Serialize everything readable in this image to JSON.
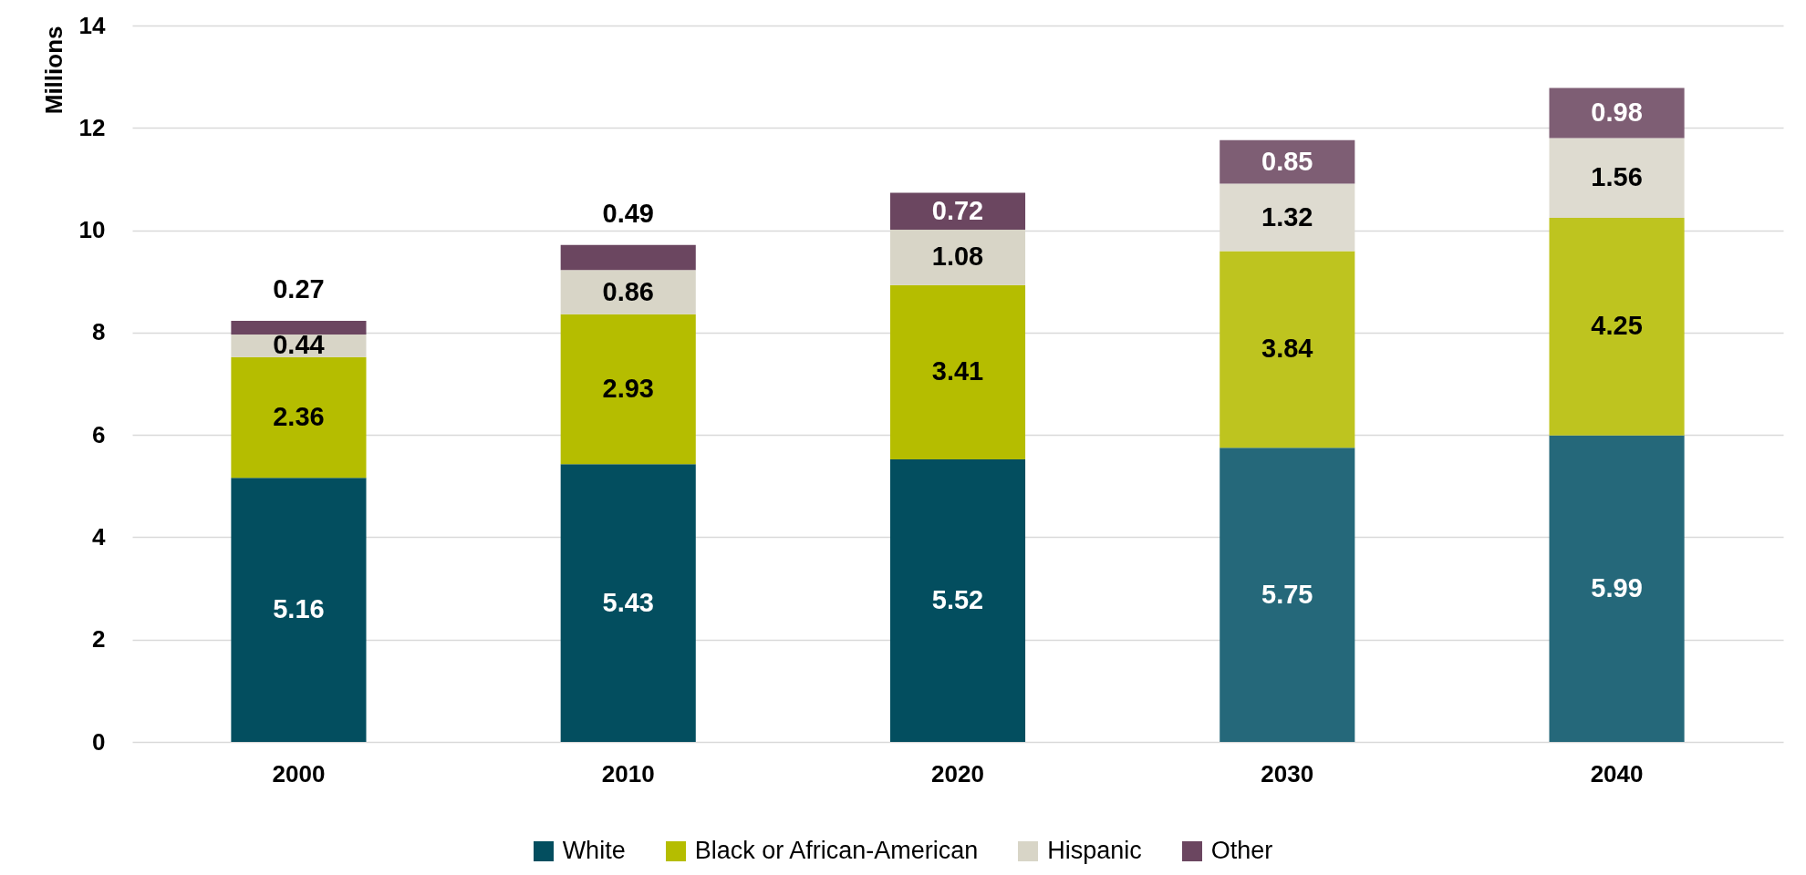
{
  "chart_data": {
    "type": "bar",
    "stacked": true,
    "ylabel": "Millions",
    "categories": [
      "2000",
      "2010",
      "2020",
      "2030",
      "2040"
    ],
    "ylim": [
      0,
      14
    ],
    "yticks": [
      0,
      2,
      4,
      6,
      8,
      10,
      12,
      14
    ],
    "grid": "y",
    "legend": "bottom",
    "data_labels": true,
    "series": [
      {
        "name": "White",
        "color": "#034e5f",
        "colors": [
          "#034e5f",
          "#034e5f",
          "#034e5f",
          "#25687a",
          "#25687a"
        ],
        "values": [
          5.16,
          5.43,
          5.52,
          5.75,
          5.99
        ]
      },
      {
        "name": "Black or African-American",
        "color": "#b5bd00",
        "colors": [
          "#b5bd00",
          "#b5bd00",
          "#b5bd00",
          "#bec41f",
          "#bec41f"
        ],
        "values": [
          2.36,
          2.93,
          3.41,
          3.84,
          4.25
        ]
      },
      {
        "name": "Hispanic",
        "color": "#d8d5c7",
        "colors": [
          "#d8d5c7",
          "#d8d5c7",
          "#d8d5c7",
          "#dedbd0",
          "#dedbd0"
        ],
        "values": [
          0.44,
          0.86,
          1.08,
          1.32,
          1.56
        ]
      },
      {
        "name": "Other",
        "color": "#6b4660",
        "colors": [
          "#6b4660",
          "#6b4660",
          "#6b4660",
          "#7e5e74",
          "#7e5e74"
        ],
        "values": [
          0.27,
          0.49,
          0.72,
          0.85,
          0.98
        ]
      }
    ]
  }
}
